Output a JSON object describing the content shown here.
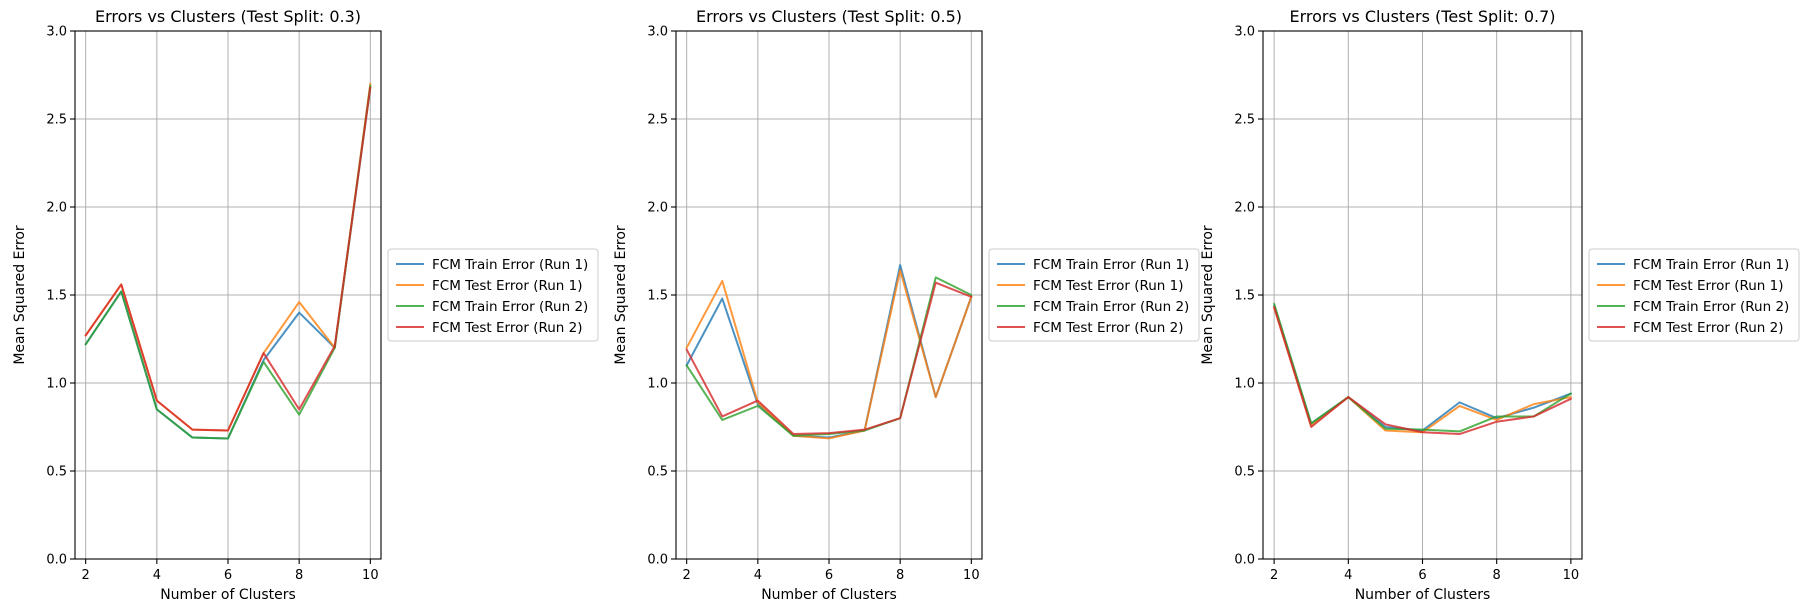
{
  "chart_data": [
    {
      "type": "line",
      "title": "Errors vs Clusters (Test Split: 0.3)",
      "xlabel": "Number of Clusters",
      "ylabel": "Mean Squared Error",
      "x": [
        2,
        3,
        4,
        5,
        6,
        7,
        8,
        9,
        10
      ],
      "xticks": [
        2,
        4,
        6,
        8,
        10
      ],
      "yticks": [
        0.0,
        0.5,
        1.0,
        1.5,
        2.0,
        2.5,
        3.0
      ],
      "xlim": [
        1.7,
        10.3
      ],
      "ylim": [
        0,
        3.0
      ],
      "grid": true,
      "legend_position": "center-left outside right",
      "series": [
        {
          "name": "FCM Train Error (Run 1)",
          "color": "#1f77b4",
          "values": [
            1.22,
            1.52,
            0.85,
            0.69,
            0.685,
            1.13,
            1.4,
            1.2,
            2.68
          ]
        },
        {
          "name": "FCM Test Error (Run 1)",
          "color": "#ff7f0e",
          "values": [
            1.27,
            1.56,
            0.9,
            0.735,
            0.73,
            1.17,
            1.46,
            1.2,
            2.7
          ]
        },
        {
          "name": "FCM Train Error (Run 2)",
          "color": "#2ca02c",
          "values": [
            1.22,
            1.52,
            0.85,
            0.69,
            0.685,
            1.12,
            0.82,
            1.2,
            2.69
          ]
        },
        {
          "name": "FCM Test Error (Run 2)",
          "color": "#d62728",
          "values": [
            1.27,
            1.56,
            0.9,
            0.735,
            0.73,
            1.17,
            0.85,
            1.21,
            2.68
          ]
        }
      ]
    },
    {
      "type": "line",
      "title": "Errors vs Clusters (Test Split: 0.5)",
      "xlabel": "Number of Clusters",
      "ylabel": "Mean Squared Error",
      "x": [
        2,
        3,
        4,
        5,
        6,
        7,
        8,
        9,
        10
      ],
      "xticks": [
        2,
        4,
        6,
        8,
        10
      ],
      "yticks": [
        0.0,
        0.5,
        1.0,
        1.5,
        2.0,
        2.5,
        3.0
      ],
      "xlim": [
        1.7,
        10.3
      ],
      "ylim": [
        0,
        3.0
      ],
      "grid": true,
      "legend_position": "center-left outside right",
      "series": [
        {
          "name": "FCM Train Error (Run 1)",
          "color": "#1f77b4",
          "values": [
            1.1,
            1.48,
            0.88,
            0.7,
            0.69,
            0.73,
            1.67,
            0.92,
            1.49
          ]
        },
        {
          "name": "FCM Test Error (Run 1)",
          "color": "#ff7f0e",
          "values": [
            1.2,
            1.58,
            0.89,
            0.7,
            0.685,
            0.73,
            1.64,
            0.92,
            1.49
          ]
        },
        {
          "name": "FCM Train Error (Run 2)",
          "color": "#2ca02c",
          "values": [
            1.1,
            0.79,
            0.87,
            0.7,
            0.71,
            0.73,
            0.8,
            1.6,
            1.5
          ]
        },
        {
          "name": "FCM Test Error (Run 2)",
          "color": "#d62728",
          "values": [
            1.19,
            0.81,
            0.9,
            0.71,
            0.715,
            0.735,
            0.8,
            1.57,
            1.49
          ]
        }
      ]
    },
    {
      "type": "line",
      "title": "Errors vs Clusters (Test Split: 0.7)",
      "xlabel": "Number of Clusters",
      "ylabel": "Mean Squared Error",
      "x": [
        2,
        3,
        4,
        5,
        6,
        7,
        8,
        9,
        10
      ],
      "xticks": [
        2,
        4,
        6,
        8,
        10
      ],
      "yticks": [
        0.0,
        0.5,
        1.0,
        1.5,
        2.0,
        2.5,
        3.0
      ],
      "xlim": [
        1.7,
        10.3
      ],
      "ylim": [
        0,
        3.0
      ],
      "grid": true,
      "legend_position": "center-left outside right",
      "series": [
        {
          "name": "FCM Train Error (Run 1)",
          "color": "#1f77b4",
          "values": [
            1.44,
            0.77,
            0.92,
            0.75,
            0.73,
            0.89,
            0.8,
            0.86,
            0.94
          ]
        },
        {
          "name": "FCM Test Error (Run 1)",
          "color": "#ff7f0e",
          "values": [
            1.43,
            0.76,
            0.92,
            0.73,
            0.72,
            0.87,
            0.79,
            0.88,
            0.92
          ]
        },
        {
          "name": "FCM Train Error (Run 2)",
          "color": "#2ca02c",
          "values": [
            1.45,
            0.77,
            0.92,
            0.74,
            0.735,
            0.725,
            0.81,
            0.81,
            0.94
          ]
        },
        {
          "name": "FCM Test Error (Run 2)",
          "color": "#d62728",
          "values": [
            1.43,
            0.75,
            0.92,
            0.765,
            0.72,
            0.71,
            0.78,
            0.81,
            0.91
          ]
        }
      ]
    }
  ]
}
